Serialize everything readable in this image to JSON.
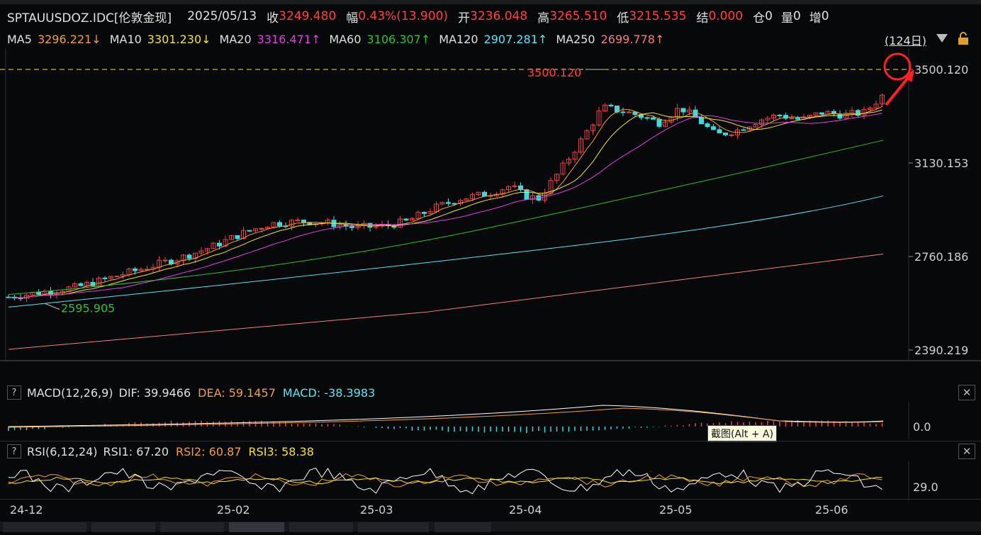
{
  "header": {
    "symbol": "SPTAUUSDOZ.IDC[伦敦金现]",
    "date": "2025/05/13",
    "close_label": "收",
    "close": "3249.480",
    "change_label": "幅",
    "change": "0.43%(13.900)",
    "open_label": "开",
    "open": "3236.048",
    "high_label": "高",
    "high": "3265.510",
    "low_label": "低",
    "low": "3215.535",
    "settle_label": "结",
    "settle": "0.000",
    "position_label": "仓",
    "position": "0",
    "volume_label": "量",
    "volume": "0",
    "increase_label": "增",
    "increase": "0"
  },
  "ma": [
    {
      "label": "MA5",
      "value": "3296.221↓",
      "color": "#f0a040"
    },
    {
      "label": "MA10",
      "value": "3301.230↓",
      "color": "#f2e23a"
    },
    {
      "label": "MA20",
      "value": "3316.471↑",
      "color": "#e040e0"
    },
    {
      "label": "MA60",
      "value": "3106.307↑",
      "color": "#30c030"
    },
    {
      "label": "MA120",
      "value": "2907.281↑",
      "color": "#60e0f0"
    },
    {
      "label": "MA250",
      "value": "2699.778↑",
      "color": "#f08080"
    }
  ],
  "period_label": "(124日)",
  "main_chart": {
    "y_ticks": [
      "3500.120",
      "3130.153",
      "2760.186",
      "2390.219"
    ],
    "high_annotation": "3500.120",
    "low_annotation": "2595.905",
    "x_ticks": [
      "24-12",
      "25-02",
      "25-03",
      "25-04",
      "25-05",
      "25-06"
    ]
  },
  "macd": {
    "title": "MACD(12,26,9)",
    "dif": "DIF: 39.9466",
    "dea": "DEA: 59.1457",
    "macd": "MACD: -38.3983",
    "axis_value": "0.0",
    "tooltip": "截图(Alt + A)"
  },
  "rsi": {
    "title": "RSI(6,12,24)",
    "rsi1": "RSI1: 67.20",
    "rsi2": "RSI2: 60.87",
    "rsi3": "RSI3: 58.38",
    "axis_value": "29.0"
  },
  "icons": [
    "dropdown-triangle-icon",
    "lock-icon",
    "close-icon",
    "help-icon"
  ],
  "colors": {
    "up": "#e84040",
    "down": "#40d8d8",
    "bg": "#07080a",
    "accent_red": "#ff3030"
  }
}
